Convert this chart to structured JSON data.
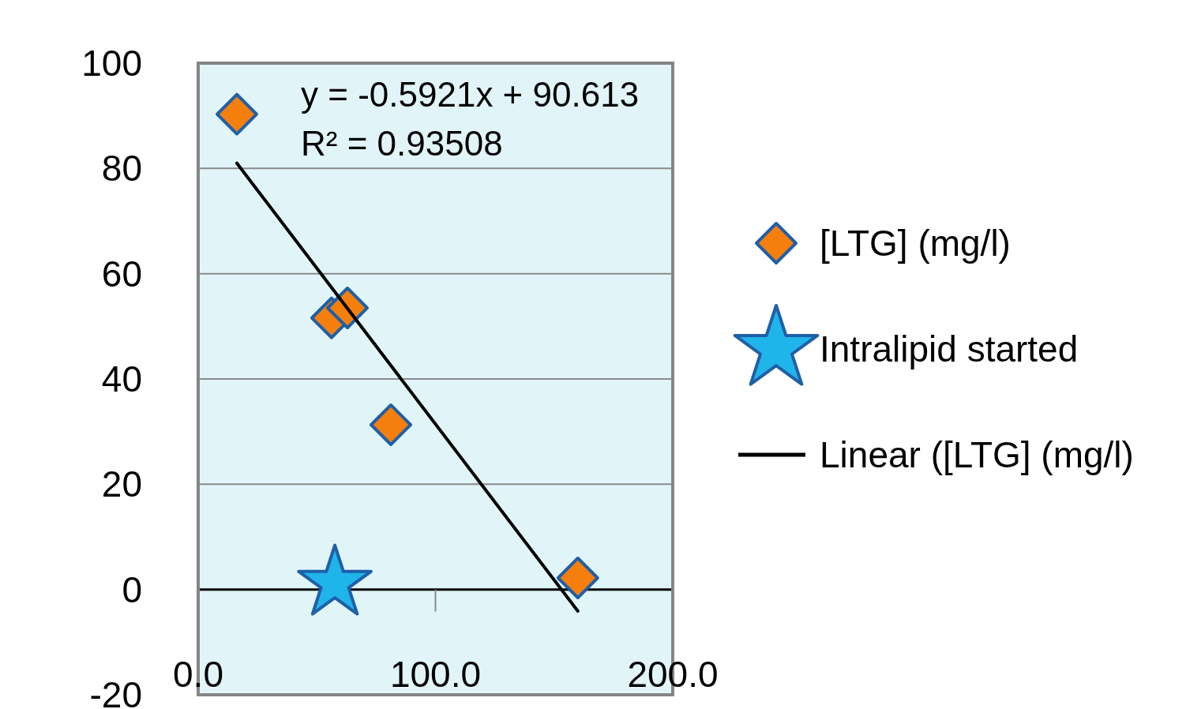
{
  "chart_data": {
    "type": "scatter",
    "xlim": [
      0,
      200
    ],
    "xticks": [
      {
        "value": 0,
        "label": "0.0"
      },
      {
        "value": 100,
        "label": "100.0"
      },
      {
        "value": 200,
        "label": "200.0"
      }
    ],
    "ylim": [
      -20,
      100
    ],
    "yticks": [
      -20,
      0,
      20,
      40,
      60,
      80,
      100
    ],
    "grid": "y",
    "legend": "right",
    "annotations": [
      "y = -0.5921x + 90.613",
      "R² = 0.93508"
    ],
    "series": [
      {
        "name": "[LTG] (mg/l)",
        "marker": "diamond",
        "color": "#f57f0c",
        "x": [
          16.3,
          56.2,
          62.9,
          81.2,
          160
        ],
        "values": [
          90.3,
          51.6,
          53.5,
          31.3,
          2.2
        ]
      },
      {
        "name": "Intralipid started",
        "marker": "star",
        "color": "#1fb5ea",
        "x": [
          57.6
        ],
        "values": [
          1.2
        ]
      },
      {
        "name": "Linear ([LTG] (mg/l)",
        "type": "line",
        "color": "#000000",
        "x": [
          16.3,
          160
        ],
        "values": [
          81,
          -4.1
        ]
      }
    ]
  }
}
